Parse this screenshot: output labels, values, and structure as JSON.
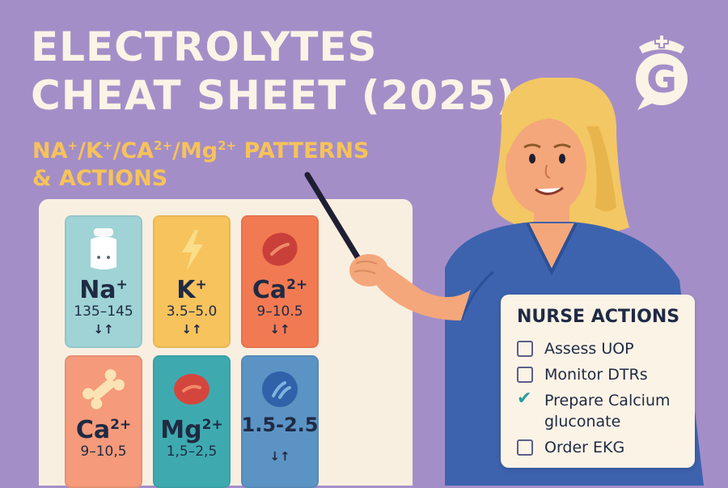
{
  "header": {
    "title_line1": "ELECTROLYTES",
    "title_line2": "CHEAT SHEET (2025)",
    "subtitle_line1_parts": [
      "NA",
      "+",
      "/K",
      "+",
      "/CA",
      "2+",
      "/Mg",
      "2+",
      " PATTERNS"
    ],
    "subtitle_line2": "& ACTIONS"
  },
  "logo": {
    "icon": "nurse-cap-g-logo-icon",
    "letter": "G"
  },
  "tiles": [
    {
      "symbol": "Na",
      "charge": "+",
      "range": "135–145",
      "arrows": "↓↑",
      "icon": "salt-shaker-icon",
      "color": "#9fd3d6"
    },
    {
      "symbol": "K",
      "charge": "+",
      "range": "3.5–5.0",
      "arrows": "↓↑",
      "icon": "lightning-icon",
      "color": "#f7c35c"
    },
    {
      "symbol": "Ca",
      "charge": "2+",
      "range": "9–10.5",
      "arrows": "↓↑",
      "icon": "red-cell-icon",
      "color": "#f27a52"
    },
    {
      "symbol": "Ca",
      "charge": "2+",
      "range": "9–10,5",
      "arrows": "",
      "icon": "bone-icon",
      "color": "#f59a7a"
    },
    {
      "symbol": "Mg",
      "charge": "2+",
      "range": "1,5–2,5",
      "arrows": "",
      "icon": "red-cell-icon",
      "color": "#3eaab0"
    },
    {
      "symbol": "",
      "charge": "",
      "range": "1.5-2.5",
      "arrows": "↓↑",
      "icon": "blue-cell-icon",
      "color": "#5b93c4"
    }
  ],
  "actions": {
    "title": "NURSE ACTIONS",
    "items": [
      {
        "label": "Assess UOP",
        "checked": false
      },
      {
        "label": "Monitor DTRs",
        "checked": false
      },
      {
        "label": "Prepare Calcium",
        "label_line2": "gluconate",
        "checked": true
      },
      {
        "label": "Order EKG",
        "checked": false
      }
    ]
  },
  "colors": {
    "background": "#a48ec8",
    "title": "#fbf3e6",
    "subtitle": "#f6c35a",
    "board": "#f8efe1",
    "scrubs": "#3d63ae",
    "hair": "#f3c763",
    "check": "#2a9d9d"
  }
}
